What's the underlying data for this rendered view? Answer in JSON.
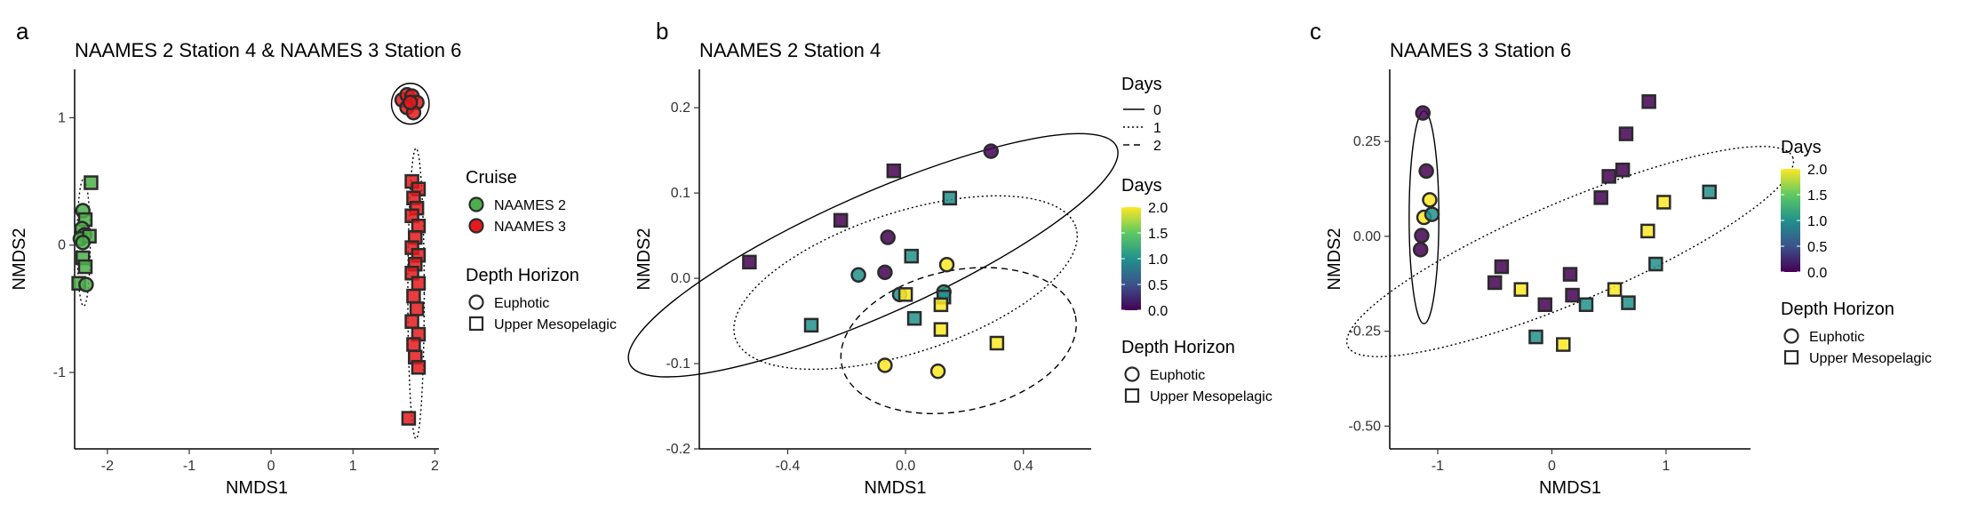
{
  "panels": [
    {
      "label": "a",
      "chart_data": {
        "type": "scatter",
        "title": "NAAMES 2 Station 4 & NAAMES 3 Station 6",
        "xlabel": "NMDS1",
        "ylabel": "NMDS2",
        "xlim": [
          -2.4,
          2.05
        ],
        "ylim": [
          -1.6,
          1.38
        ],
        "xticks": [
          -2,
          -1,
          0,
          1,
          2
        ],
        "yticks": [
          -1,
          0,
          1
        ],
        "xtick_labels": [
          "-2",
          "-1",
          "0",
          "1",
          "2"
        ],
        "ytick_labels": [
          "-1",
          "0",
          "1"
        ],
        "grid": false,
        "series": [
          {
            "name": "NAAMES 2",
            "color": "#4daf4a",
            "points": [
              {
                "x": -2.2,
                "y": 0.49,
                "shape": "square"
              },
              {
                "x": -2.3,
                "y": 0.27,
                "shape": "circle"
              },
              {
                "x": -2.27,
                "y": 0.2,
                "shape": "square"
              },
              {
                "x": -2.31,
                "y": 0.13,
                "shape": "circle"
              },
              {
                "x": -2.28,
                "y": 0.08,
                "shape": "circle"
              },
              {
                "x": -2.33,
                "y": 0.05,
                "shape": "circle"
              },
              {
                "x": -2.22,
                "y": 0.07,
                "shape": "square"
              },
              {
                "x": -2.3,
                "y": 0.02,
                "shape": "circle"
              },
              {
                "x": -2.3,
                "y": -0.1,
                "shape": "square"
              },
              {
                "x": -2.27,
                "y": -0.17,
                "shape": "square"
              },
              {
                "x": -2.35,
                "y": -0.3,
                "shape": "square"
              },
              {
                "x": -2.26,
                "y": -0.31,
                "shape": "circle"
              }
            ]
          },
          {
            "name": "NAAMES 3",
            "color": "#e41a1c",
            "points": [
              {
                "x": 1.6,
                "y": 1.14,
                "shape": "circle"
              },
              {
                "x": 1.66,
                "y": 1.18,
                "shape": "circle"
              },
              {
                "x": 1.72,
                "y": 1.17,
                "shape": "circle"
              },
              {
                "x": 1.78,
                "y": 1.12,
                "shape": "circle"
              },
              {
                "x": 1.66,
                "y": 1.08,
                "shape": "circle"
              },
              {
                "x": 1.74,
                "y": 1.04,
                "shape": "circle"
              },
              {
                "x": 1.7,
                "y": 1.12,
                "shape": "circle"
              },
              {
                "x": 1.72,
                "y": 0.5,
                "shape": "square"
              },
              {
                "x": 1.8,
                "y": 0.44,
                "shape": "square"
              },
              {
                "x": 1.74,
                "y": 0.37,
                "shape": "square"
              },
              {
                "x": 1.78,
                "y": 0.29,
                "shape": "square"
              },
              {
                "x": 1.72,
                "y": 0.23,
                "shape": "square"
              },
              {
                "x": 1.8,
                "y": 0.15,
                "shape": "square"
              },
              {
                "x": 1.76,
                "y": 0.06,
                "shape": "square"
              },
              {
                "x": 1.72,
                "y": -0.02,
                "shape": "square"
              },
              {
                "x": 1.8,
                "y": -0.08,
                "shape": "square"
              },
              {
                "x": 1.76,
                "y": -0.15,
                "shape": "square"
              },
              {
                "x": 1.72,
                "y": -0.22,
                "shape": "square"
              },
              {
                "x": 1.8,
                "y": -0.3,
                "shape": "square"
              },
              {
                "x": 1.74,
                "y": -0.4,
                "shape": "square"
              },
              {
                "x": 1.78,
                "y": -0.5,
                "shape": "square"
              },
              {
                "x": 1.72,
                "y": -0.6,
                "shape": "square"
              },
              {
                "x": 1.8,
                "y": -0.7,
                "shape": "square"
              },
              {
                "x": 1.74,
                "y": -0.78,
                "shape": "square"
              },
              {
                "x": 1.76,
                "y": -0.88,
                "shape": "square"
              },
              {
                "x": 1.8,
                "y": -0.96,
                "shape": "square"
              },
              {
                "x": 1.68,
                "y": -1.36,
                "shape": "square"
              }
            ]
          }
        ],
        "ellipses": [
          {
            "cx": 1.7,
            "cy": 1.11,
            "rx": 0.23,
            "ry": 0.16,
            "angle": 0,
            "dash": "solid"
          },
          {
            "cx": -2.29,
            "cy": 0.02,
            "rx": 0.08,
            "ry": 0.5,
            "angle": 0,
            "dash": "dotted"
          },
          {
            "cx": 1.77,
            "cy": -0.38,
            "rx": 0.1,
            "ry": 1.14,
            "angle": 0,
            "dash": "dotted"
          }
        ],
        "legends": [
          {
            "title": "Cruise",
            "items": [
              {
                "label": "NAAMES 2",
                "color": "#4daf4a",
                "shape": "circle"
              },
              {
                "label": "NAAMES 3",
                "color": "#e41a1c",
                "shape": "circle"
              }
            ]
          },
          {
            "title": "Depth Horizon",
            "items": [
              {
                "label": "Euphotic",
                "shape": "circle"
              },
              {
                "label": "Upper Mesopelagic",
                "shape": "square"
              }
            ]
          }
        ]
      }
    },
    {
      "label": "b",
      "chart_data": {
        "type": "scatter",
        "title": "NAAMES 2 Station 4",
        "xlabel": "NMDS1",
        "ylabel": "NMDS2",
        "xlim": [
          -0.7,
          0.63
        ],
        "ylim": [
          -0.2,
          0.245
        ],
        "xticks": [
          -0.4,
          0,
          0.4
        ],
        "yticks": [
          -0.2,
          -0.1,
          0,
          0.1,
          0.2
        ],
        "xtick_labels": [
          "-0.4",
          "0.0",
          "0.4"
        ],
        "ytick_labels": [
          "-0.2",
          "-0.1",
          "0.0",
          "0.1",
          "0.2"
        ],
        "grid": false,
        "points": [
          {
            "x": -0.53,
            "y": 0.019,
            "shape": "square",
            "day": 0
          },
          {
            "x": -0.22,
            "y": 0.068,
            "shape": "square",
            "day": 0
          },
          {
            "x": -0.04,
            "y": 0.126,
            "shape": "square",
            "day": 0
          },
          {
            "x": 0.29,
            "y": 0.149,
            "shape": "circle",
            "day": 0
          },
          {
            "x": -0.06,
            "y": 0.048,
            "shape": "circle",
            "day": 0
          },
          {
            "x": -0.07,
            "y": 0.007,
            "shape": "circle",
            "day": 0
          },
          {
            "x": 0.15,
            "y": 0.094,
            "shape": "square",
            "day": 1
          },
          {
            "x": 0.02,
            "y": 0.026,
            "shape": "square",
            "day": 1
          },
          {
            "x": -0.16,
            "y": 0.004,
            "shape": "circle",
            "day": 1
          },
          {
            "x": -0.02,
            "y": -0.019,
            "shape": "circle",
            "day": 1
          },
          {
            "x": 0.13,
            "y": -0.016,
            "shape": "circle",
            "day": 1
          },
          {
            "x": 0.13,
            "y": -0.022,
            "shape": "square",
            "day": 1
          },
          {
            "x": -0.32,
            "y": -0.055,
            "shape": "square",
            "day": 1
          },
          {
            "x": 0.03,
            "y": -0.047,
            "shape": "square",
            "day": 1
          },
          {
            "x": 0.14,
            "y": 0.016,
            "shape": "circle",
            "day": 2
          },
          {
            "x": 0.0,
            "y": -0.019,
            "shape": "square",
            "day": 2
          },
          {
            "x": 0.12,
            "y": -0.031,
            "shape": "square",
            "day": 2
          },
          {
            "x": 0.12,
            "y": -0.06,
            "shape": "square",
            "day": 2
          },
          {
            "x": 0.31,
            "y": -0.076,
            "shape": "square",
            "day": 2
          },
          {
            "x": -0.07,
            "y": -0.102,
            "shape": "circle",
            "day": 2
          },
          {
            "x": 0.11,
            "y": -0.109,
            "shape": "circle",
            "day": 2
          }
        ],
        "ellipses": [
          {
            "cx": -0.11,
            "cy": 0.027,
            "rx": 0.67,
            "ry": 0.12,
            "angle": 24,
            "dash": "solid",
            "day": 0
          },
          {
            "cx": 0.0,
            "cy": -0.005,
            "rx": 0.45,
            "ry": 0.14,
            "angle": 18,
            "dash": "dotted",
            "day": 1
          },
          {
            "cx": 0.18,
            "cy": -0.073,
            "rx": 0.3,
            "ry": 0.14,
            "angle": 12,
            "dash": "dashed",
            "day": 2
          }
        ],
        "legends": [
          {
            "title": "Days",
            "kind": "lines",
            "items": [
              {
                "label": "0",
                "dash": "solid"
              },
              {
                "label": "1",
                "dash": "dotted"
              },
              {
                "label": "2",
                "dash": "dashed"
              }
            ]
          },
          {
            "title": "Days",
            "kind": "colorbar",
            "range": [
              0,
              2
            ],
            "ticks": [
              "2.0",
              "1.5",
              "1.0",
              "0.5",
              "0.0"
            ]
          },
          {
            "title": "Depth Horizon",
            "items": [
              {
                "label": "Euphotic",
                "shape": "circle"
              },
              {
                "label": "Upper Mesopelagic",
                "shape": "square"
              }
            ]
          }
        ]
      }
    },
    {
      "label": "c",
      "chart_data": {
        "type": "scatter",
        "title": "NAAMES 3 Station 6",
        "xlabel": "NMDS1",
        "ylabel": "NMDS2",
        "xlim": [
          -1.42,
          1.74
        ],
        "ylim": [
          -0.56,
          0.44
        ],
        "xticks": [
          -1,
          0,
          1
        ],
        "yticks": [
          -0.5,
          -0.25,
          0,
          0.25
        ],
        "xtick_labels": [
          "-1",
          "0",
          "1"
        ],
        "ytick_labels": [
          "-0.50",
          "-0.25",
          "0.00",
          "0.25"
        ],
        "grid": false,
        "points": [
          {
            "x": -1.13,
            "y": 0.325,
            "shape": "circle",
            "day": 0
          },
          {
            "x": -1.1,
            "y": 0.172,
            "shape": "circle",
            "day": 0
          },
          {
            "x": -1.14,
            "y": 0.002,
            "shape": "circle",
            "day": 0
          },
          {
            "x": -1.15,
            "y": -0.035,
            "shape": "circle",
            "day": 0
          },
          {
            "x": -1.12,
            "y": 0.05,
            "shape": "circle",
            "day": 2
          },
          {
            "x": -1.07,
            "y": 0.096,
            "shape": "circle",
            "day": 2
          },
          {
            "x": -1.05,
            "y": 0.058,
            "shape": "circle",
            "day": 1
          },
          {
            "x": 0.85,
            "y": 0.355,
            "shape": "square",
            "day": 0
          },
          {
            "x": 0.65,
            "y": 0.27,
            "shape": "square",
            "day": 0
          },
          {
            "x": 0.62,
            "y": 0.175,
            "shape": "square",
            "day": 0
          },
          {
            "x": 0.5,
            "y": 0.158,
            "shape": "square",
            "day": 0
          },
          {
            "x": 0.43,
            "y": 0.102,
            "shape": "square",
            "day": 0
          },
          {
            "x": -0.44,
            "y": -0.08,
            "shape": "square",
            "day": 0
          },
          {
            "x": -0.5,
            "y": -0.122,
            "shape": "square",
            "day": 0
          },
          {
            "x": 0.16,
            "y": -0.1,
            "shape": "square",
            "day": 0
          },
          {
            "x": 0.18,
            "y": -0.155,
            "shape": "square",
            "day": 0
          },
          {
            "x": -0.06,
            "y": -0.18,
            "shape": "square",
            "day": 0
          },
          {
            "x": 1.38,
            "y": 0.117,
            "shape": "square",
            "day": 1
          },
          {
            "x": 0.91,
            "y": -0.073,
            "shape": "square",
            "day": 1
          },
          {
            "x": 0.3,
            "y": -0.18,
            "shape": "square",
            "day": 1
          },
          {
            "x": 0.67,
            "y": -0.175,
            "shape": "square",
            "day": 1
          },
          {
            "x": -0.14,
            "y": -0.265,
            "shape": "square",
            "day": 1
          },
          {
            "x": 0.98,
            "y": 0.09,
            "shape": "square",
            "day": 2
          },
          {
            "x": 0.84,
            "y": 0.014,
            "shape": "square",
            "day": 2
          },
          {
            "x": -0.27,
            "y": -0.14,
            "shape": "square",
            "day": 2
          },
          {
            "x": 0.55,
            "y": -0.14,
            "shape": "square",
            "day": 2
          },
          {
            "x": 0.1,
            "y": -0.285,
            "shape": "square",
            "day": 2
          }
        ],
        "ellipses": [
          {
            "cx": -1.12,
            "cy": 0.05,
            "rx": 0.13,
            "ry": 0.28,
            "angle": 0,
            "dash": "solid",
            "day": 0
          },
          {
            "cx": 0.16,
            "cy": -0.04,
            "rx": 1.5,
            "ry": 0.24,
            "angle": 23,
            "dash": "dotted",
            "day": 1
          }
        ],
        "legends": [
          {
            "title": "Days",
            "kind": "colorbar",
            "range": [
              0,
              2
            ],
            "ticks": [
              "2.0",
              "1.5",
              "1.0",
              "0.5",
              "0.0"
            ]
          },
          {
            "title": "Depth Horizon",
            "items": [
              {
                "label": "Euphotic",
                "shape": "circle"
              },
              {
                "label": "Upper Mesopelagic",
                "shape": "square"
              }
            ]
          }
        ]
      }
    }
  ]
}
